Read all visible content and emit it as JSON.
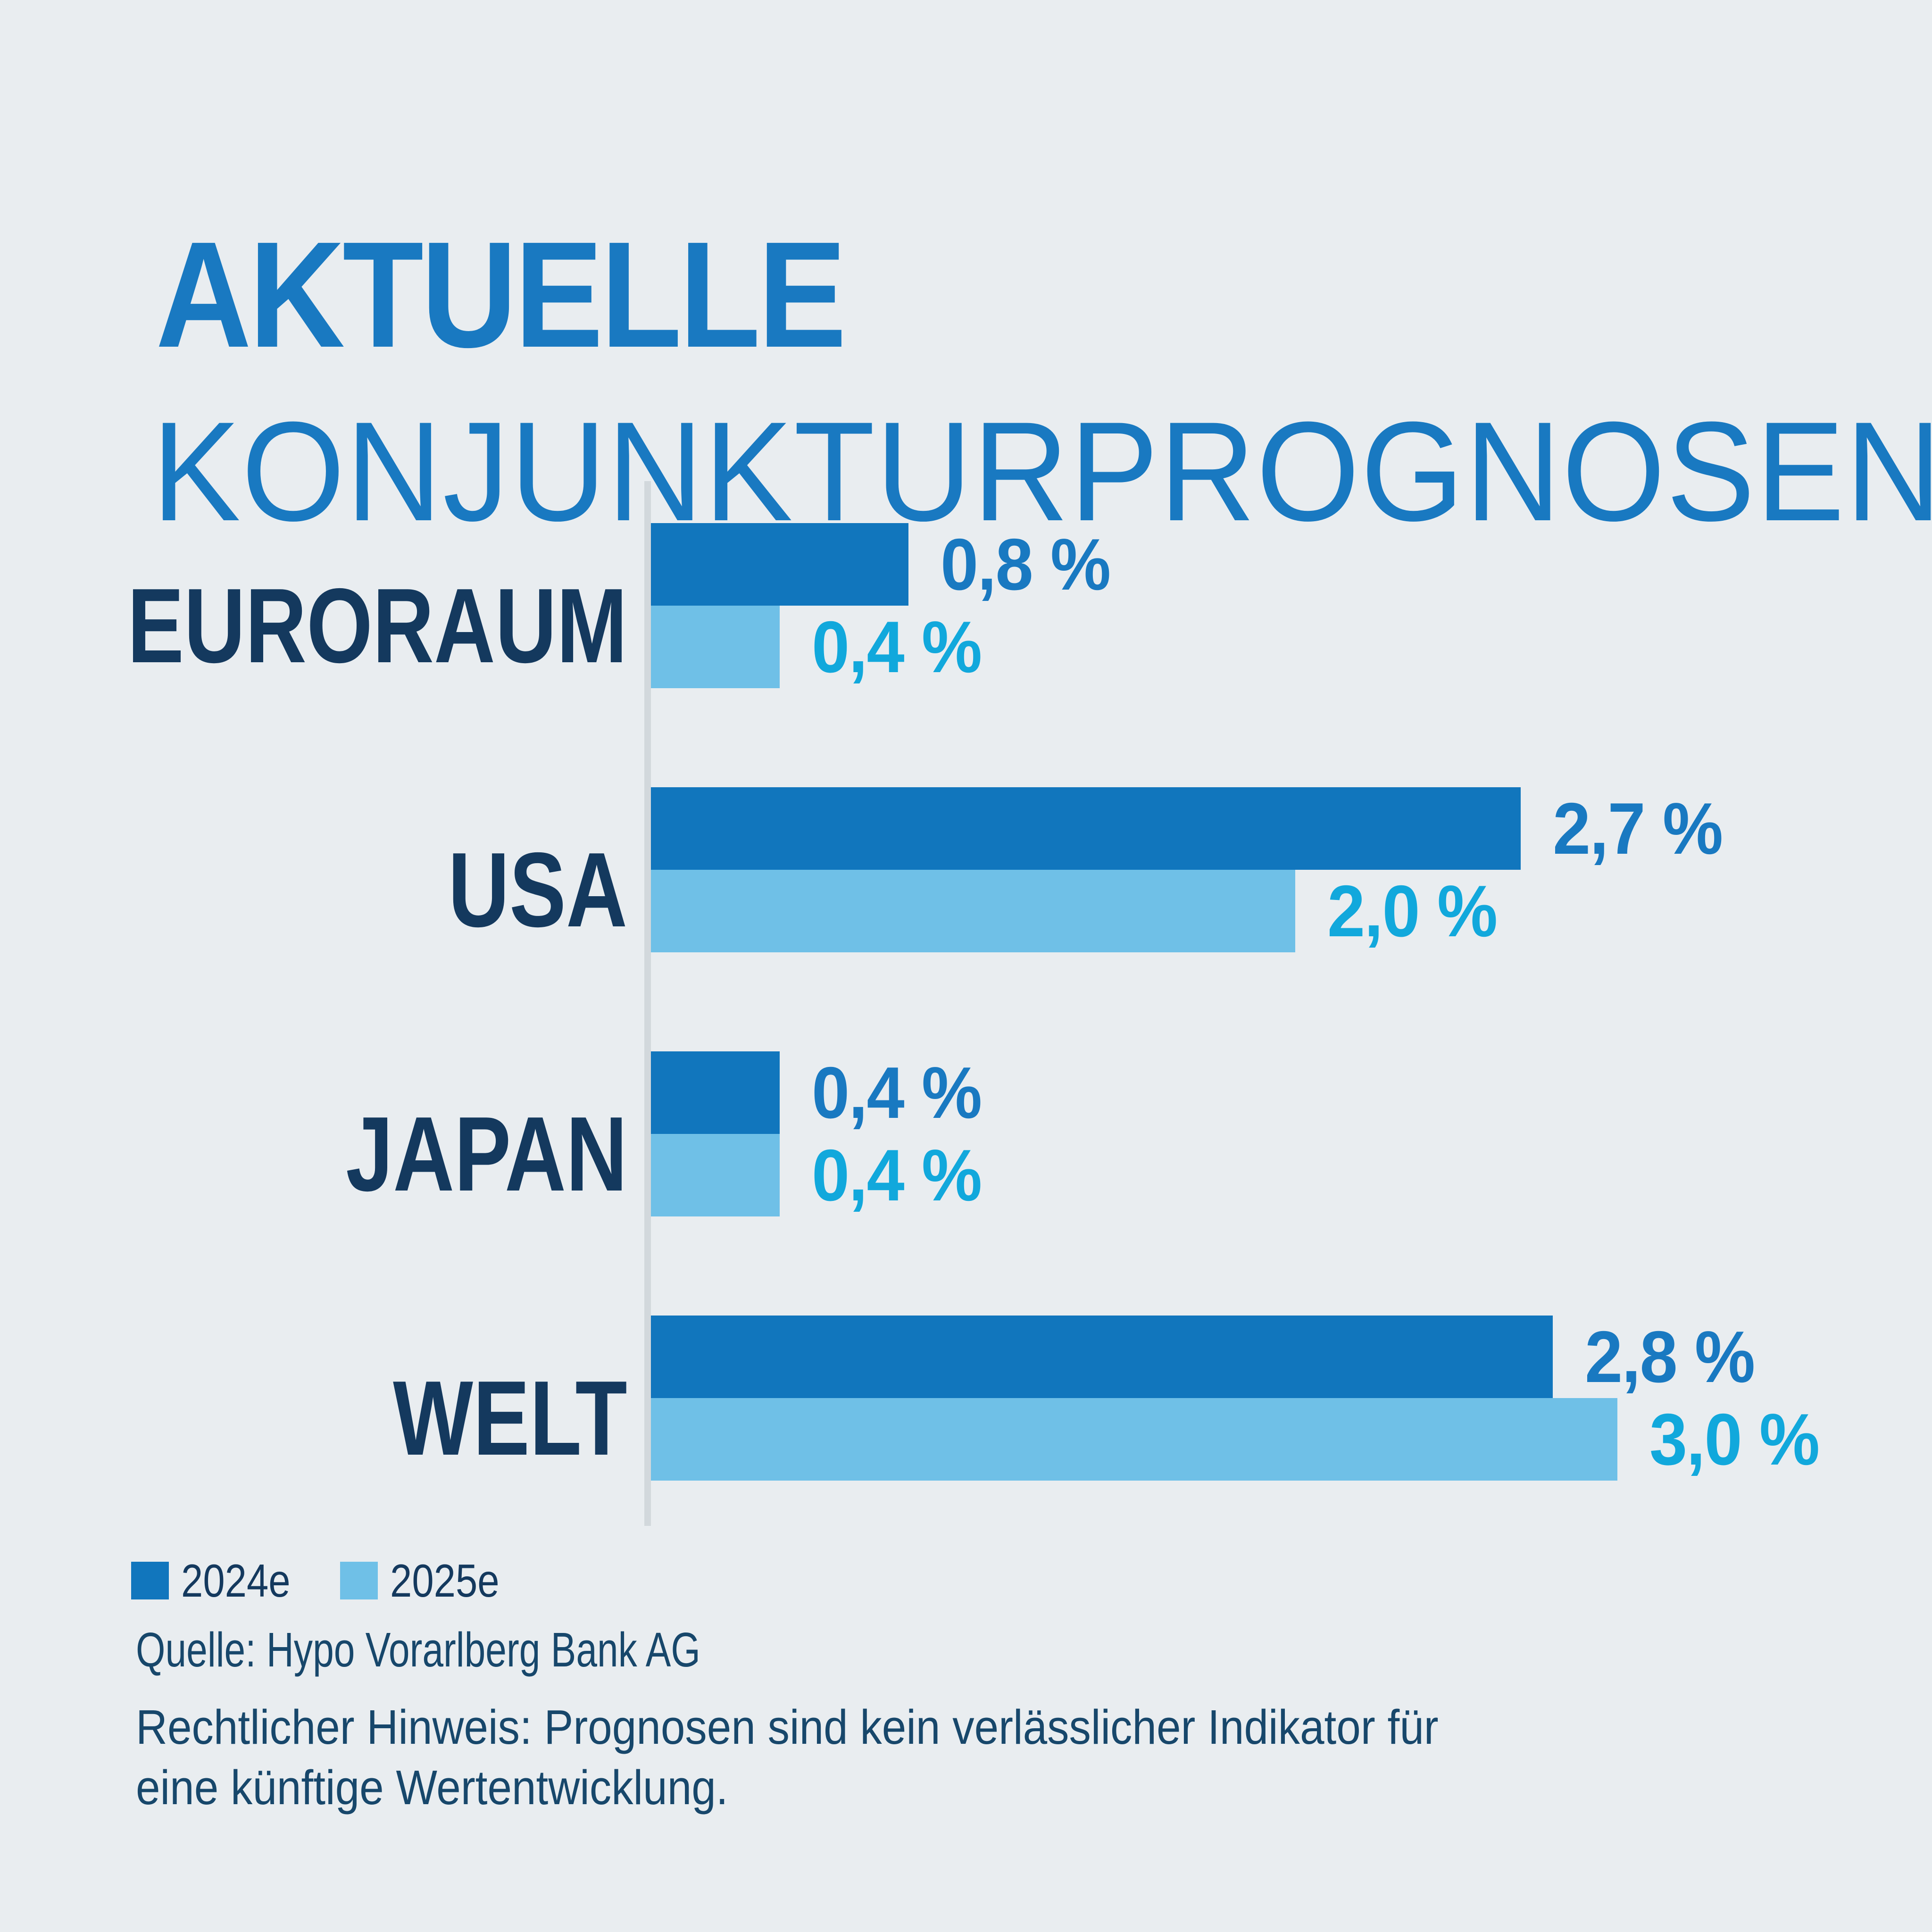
{
  "title": {
    "line1": "AKTUELLE",
    "line2": "KONJUNKTURPROGNOSEN"
  },
  "chart_data": {
    "type": "bar",
    "orientation": "horizontal",
    "unit": "%",
    "title": "Aktuelle Konjunkturprognosen",
    "categories": [
      "EURORAUM",
      "USA",
      "JAPAN",
      "WELT"
    ],
    "series": [
      {
        "name": "2024e",
        "color": "#1176BD",
        "label_color": "#1979C1",
        "values": [
          0.8,
          2.7,
          0.4,
          2.8
        ],
        "labels": [
          "0,8 %",
          "2,7 %",
          "0,4 %",
          "2,8 %"
        ]
      },
      {
        "name": "2025e",
        "color": "#6FC0E7",
        "label_color": "#11A8DC",
        "values": [
          0.4,
          2.0,
          0.4,
          3.0
        ],
        "labels": [
          "0,4 %",
          "2,0 %",
          "0,4 %",
          "3,0 %"
        ]
      }
    ],
    "x_axis": {
      "min": 0,
      "max": 3.0,
      "gridlines": false,
      "tick_labels": []
    },
    "legend_position": "bottom-left",
    "data_labels": true
  },
  "legend": [
    {
      "label": "2024e",
      "color": "#1176BD"
    },
    {
      "label": "2025e",
      "color": "#6FC0E7"
    }
  ],
  "footer": {
    "source": "Quelle: Hypo Vorarlberg Bank AG",
    "legal_line1": "Rechtlicher Hinweis: Prognosen sind kein verlässlicher Indikator für",
    "legal_line2": "eine künftige Wertentwicklung."
  },
  "colors": {
    "background": "#E9EDF0",
    "title_blue": "#1979C1",
    "bar_dark_blue": "#1176BD",
    "bar_light_blue": "#6FC0E7",
    "value_label_dark": "#1979C1",
    "value_label_light": "#11A8DC",
    "category_navy": "#14395E",
    "footer_navy": "#17476B",
    "axis_gray": "#D2D8DC"
  }
}
